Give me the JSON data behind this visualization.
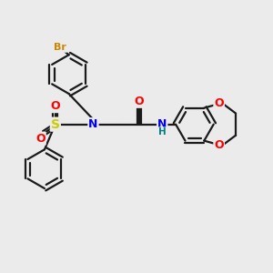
{
  "background_color": "#ebebeb",
  "bond_color": "#1a1a1a",
  "bond_width": 1.6,
  "atom_colors": {
    "Br": "#cc8800",
    "N": "#0000ee",
    "O": "#ff0000",
    "S": "#cccc00",
    "C": "#1a1a1a",
    "H": "#008080"
  },
  "figsize": [
    3.0,
    3.0
  ],
  "dpi": 100
}
